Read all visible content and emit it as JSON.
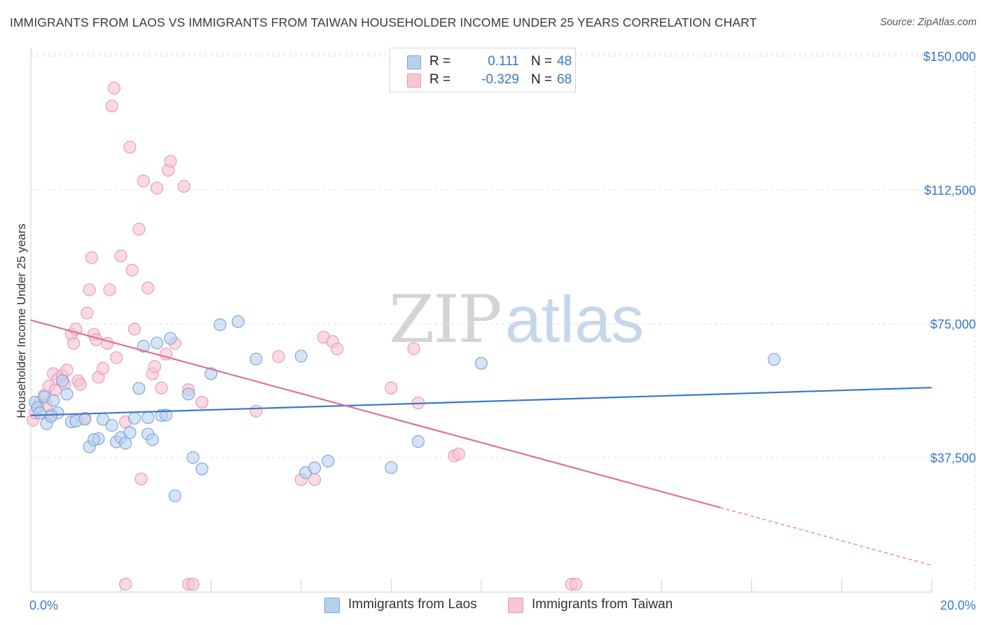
{
  "header": {
    "title": "IMMIGRANTS FROM LAOS VS IMMIGRANTS FROM TAIWAN HOUSEHOLDER INCOME UNDER 25 YEARS CORRELATION CHART",
    "source": "Source: ZipAtlas.com"
  },
  "watermark": {
    "part1": "ZIP",
    "part2": "atlas"
  },
  "legend": {
    "laos": {
      "r_label": "R =",
      "r_value": "0.111",
      "n_label": "N =",
      "n_value": "48"
    },
    "taiwan": {
      "r_label": "R =",
      "r_value": "-0.329",
      "n_label": "N =",
      "n_value": "68"
    }
  },
  "bottom_legend": {
    "laos": "Immigrants from Laos",
    "taiwan": "Immigrants from Taiwan"
  },
  "colors": {
    "laos_fill": "#b8d0f0",
    "laos_stroke": "#7aa3d6",
    "laos_line": "#3a78c9",
    "taiwan_fill": "#f7c6d6",
    "taiwan_stroke": "#e896b3",
    "taiwan_line": "#e0709a",
    "tick_text": "#3a78c9",
    "grid": "#e2e2e2"
  },
  "chart_data": {
    "type": "scatter",
    "title": "IMMIGRANTS FROM LAOS VS IMMIGRANTS FROM TAIWAN HOUSEHOLDER INCOME UNDER 25 YEARS CORRELATION CHART",
    "xlabel": "",
    "ylabel": "Householder Income Under 25 years",
    "xlim": [
      0,
      20
    ],
    "ylim": [
      0,
      155000
    ],
    "x_tick_labels": [
      "0.0%",
      "20.0%"
    ],
    "y_ticks": [
      37500,
      75000,
      112500,
      150000
    ],
    "y_tick_labels": [
      "$37,500",
      "$75,000",
      "$112,500",
      "$150,000"
    ],
    "grid": true,
    "series": [
      {
        "name": "Immigrants from Laos",
        "R": 0.111,
        "N": 48,
        "trend": {
          "x0": 0,
          "y0": 49300,
          "x1": 20,
          "y1": 57100
        },
        "points": [
          [
            0.1,
            53000
          ],
          [
            0.15,
            51500
          ],
          [
            0.2,
            50000
          ],
          [
            0.3,
            54500
          ],
          [
            0.35,
            47000
          ],
          [
            0.5,
            53500
          ],
          [
            0.6,
            50000
          ],
          [
            0.8,
            55300
          ],
          [
            0.9,
            47500
          ],
          [
            1.0,
            47700
          ],
          [
            1.2,
            48200
          ],
          [
            1.3,
            40500
          ],
          [
            1.5,
            42800
          ],
          [
            1.6,
            48200
          ],
          [
            1.8,
            46500
          ],
          [
            1.9,
            41900
          ],
          [
            2.0,
            43100
          ],
          [
            2.1,
            41500
          ],
          [
            2.2,
            44500
          ],
          [
            2.4,
            56900
          ],
          [
            2.5,
            68700
          ],
          [
            2.6,
            44100
          ],
          [
            2.6,
            48700
          ],
          [
            2.7,
            42500
          ],
          [
            2.8,
            69600
          ],
          [
            2.9,
            49300
          ],
          [
            3.0,
            49400
          ],
          [
            3.1,
            70900
          ],
          [
            3.5,
            55300
          ],
          [
            3.6,
            37500
          ],
          [
            3.8,
            34300
          ],
          [
            4.0,
            61000
          ],
          [
            4.2,
            74700
          ],
          [
            4.6,
            75600
          ],
          [
            5.0,
            65100
          ],
          [
            6.0,
            65900
          ],
          [
            6.1,
            33300
          ],
          [
            6.3,
            34600
          ],
          [
            6.6,
            36500
          ],
          [
            8.0,
            34700
          ],
          [
            8.6,
            42000
          ],
          [
            10.0,
            63900
          ],
          [
            16.5,
            65000
          ],
          [
            3.2,
            26800
          ],
          [
            0.7,
            59000
          ],
          [
            1.4,
            42500
          ],
          [
            0.45,
            49000
          ],
          [
            2.3,
            48500
          ]
        ]
      },
      {
        "name": "Immigrants from Taiwan",
        "R": -0.329,
        "N": 68,
        "trend": {
          "x0": 0,
          "y0": 76000,
          "x1": 15.3,
          "y1": 23500,
          "dashed_to_x": 20,
          "dashed_to_y": 7300
        },
        "points": [
          [
            0.05,
            48000
          ],
          [
            0.1,
            50000
          ],
          [
            0.2,
            53000
          ],
          [
            0.3,
            55000
          ],
          [
            0.35,
            52000
          ],
          [
            0.4,
            57500
          ],
          [
            0.45,
            49500
          ],
          [
            0.5,
            61000
          ],
          [
            0.55,
            56500
          ],
          [
            0.6,
            59500
          ],
          [
            0.7,
            60500
          ],
          [
            0.75,
            58000
          ],
          [
            0.8,
            62000
          ],
          [
            0.9,
            72000
          ],
          [
            0.95,
            69500
          ],
          [
            1.0,
            73500
          ],
          [
            1.05,
            59000
          ],
          [
            1.1,
            58000
          ],
          [
            1.2,
            48500
          ],
          [
            1.25,
            78000
          ],
          [
            1.3,
            84500
          ],
          [
            1.35,
            93500
          ],
          [
            1.4,
            72000
          ],
          [
            1.45,
            70500
          ],
          [
            1.5,
            60000
          ],
          [
            1.6,
            62500
          ],
          [
            1.7,
            69500
          ],
          [
            1.75,
            84500
          ],
          [
            1.8,
            136000
          ],
          [
            1.85,
            141000
          ],
          [
            1.9,
            65500
          ],
          [
            2.0,
            94000
          ],
          [
            2.1,
            47500
          ],
          [
            2.2,
            124500
          ],
          [
            2.25,
            90000
          ],
          [
            2.3,
            73500
          ],
          [
            2.4,
            101500
          ],
          [
            2.45,
            31500
          ],
          [
            2.5,
            115000
          ],
          [
            2.6,
            85000
          ],
          [
            2.7,
            61000
          ],
          [
            2.75,
            63000
          ],
          [
            2.8,
            113000
          ],
          [
            2.9,
            57000
          ],
          [
            3.0,
            66500
          ],
          [
            3.05,
            118000
          ],
          [
            3.1,
            120500
          ],
          [
            3.2,
            69500
          ],
          [
            3.4,
            113500
          ],
          [
            3.5,
            56500
          ],
          [
            3.8,
            53000
          ],
          [
            5.0,
            50500
          ],
          [
            5.5,
            65800
          ],
          [
            6.0,
            31300
          ],
          [
            6.3,
            31300
          ],
          [
            6.5,
            71200
          ],
          [
            6.7,
            70000
          ],
          [
            6.8,
            67900
          ],
          [
            8.0,
            57000
          ],
          [
            8.5,
            68000
          ],
          [
            8.6,
            52800
          ],
          [
            9.4,
            38000
          ],
          [
            9.5,
            38500
          ],
          [
            2.1,
            2000
          ],
          [
            3.5,
            2000
          ],
          [
            3.6,
            2000
          ],
          [
            12.0,
            2000
          ],
          [
            12.1,
            2000
          ]
        ]
      }
    ]
  }
}
